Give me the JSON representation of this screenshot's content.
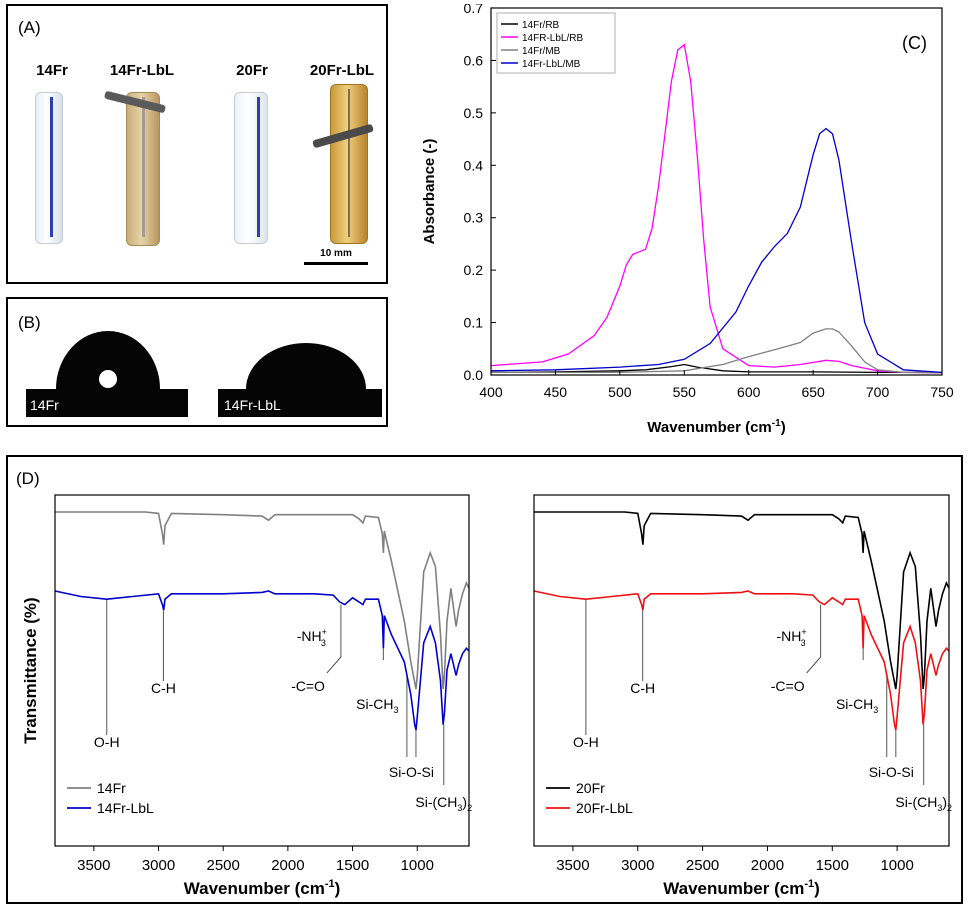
{
  "panel_a": {
    "label": "(A)",
    "samples": [
      "14Fr",
      "14Fr-LbL",
      "20Fr",
      "20Fr-LbL"
    ],
    "scale_bar": "10 mm"
  },
  "panel_b": {
    "label": "(B)",
    "drops": [
      "14Fr",
      "14Fr-LbL"
    ]
  },
  "panel_d": {
    "label": "(D)"
  },
  "chart_data": [
    {
      "id": "C",
      "type": "line",
      "panel_label": "(C)",
      "xlabel": "Wavenumber (cm",
      "xlabel_sup": "-1",
      "xlabel_end": ")",
      "ylabel": "Absorbance (-)",
      "xlim": [
        400,
        750
      ],
      "ylim": [
        0,
        0.7
      ],
      "xticks": [
        400,
        450,
        500,
        550,
        600,
        650,
        700,
        750
      ],
      "yticks": [
        0.0,
        0.1,
        0.2,
        0.3,
        0.4,
        0.5,
        0.6,
        0.7
      ],
      "legend": "top-left",
      "series": [
        {
          "name": "14Fr/RB",
          "color": "#000000",
          "x": [
            400,
            450,
            500,
            520,
            540,
            550,
            560,
            580,
            600,
            650,
            700,
            750
          ],
          "y": [
            0.005,
            0.006,
            0.008,
            0.01,
            0.016,
            0.02,
            0.015,
            0.008,
            0.006,
            0.006,
            0.005,
            0.005
          ]
        },
        {
          "name": "14FR-LbL/RB",
          "color": "#ff00ff",
          "x": [
            400,
            440,
            460,
            480,
            490,
            500,
            505,
            510,
            515,
            520,
            525,
            530,
            535,
            540,
            545,
            550,
            555,
            560,
            565,
            570,
            580,
            600,
            620,
            640,
            660,
            670,
            680,
            700,
            720,
            750
          ],
          "y": [
            0.018,
            0.025,
            0.04,
            0.075,
            0.11,
            0.17,
            0.21,
            0.23,
            0.235,
            0.24,
            0.28,
            0.36,
            0.46,
            0.56,
            0.62,
            0.63,
            0.56,
            0.42,
            0.26,
            0.13,
            0.05,
            0.018,
            0.015,
            0.02,
            0.028,
            0.026,
            0.018,
            0.008,
            0.005,
            0.004
          ]
        },
        {
          "name": "14Fr/MB",
          "color": "#808080",
          "x": [
            400,
            500,
            550,
            580,
            600,
            620,
            640,
            650,
            660,
            665,
            670,
            680,
            690,
            700,
            720,
            750
          ],
          "y": [
            0.005,
            0.005,
            0.008,
            0.02,
            0.035,
            0.048,
            0.062,
            0.08,
            0.088,
            0.088,
            0.082,
            0.055,
            0.025,
            0.01,
            0.005,
            0.004
          ]
        },
        {
          "name": "14Fr-LbL/MB",
          "color": "#0000cc",
          "x": [
            400,
            450,
            500,
            530,
            550,
            570,
            590,
            600,
            610,
            620,
            630,
            640,
            650,
            655,
            660,
            665,
            670,
            680,
            690,
            700,
            720,
            750
          ],
          "y": [
            0.008,
            0.01,
            0.015,
            0.02,
            0.03,
            0.06,
            0.12,
            0.17,
            0.215,
            0.245,
            0.27,
            0.32,
            0.42,
            0.46,
            0.47,
            0.46,
            0.41,
            0.25,
            0.1,
            0.04,
            0.01,
            0.005
          ]
        }
      ]
    },
    {
      "id": "D-left",
      "type": "line",
      "xlabel": "Wavenumber (cm",
      "xlabel_sup": "-1",
      "xlabel_end": ")",
      "ylabel": "Transmittance (%)",
      "xlim": [
        3800,
        600
      ],
      "xticks": [
        3500,
        3000,
        2500,
        2000,
        1500,
        1000
      ],
      "legend": "bottom-left",
      "annotations": [
        "O-H",
        "C-H",
        "-NH",
        "-C=O",
        "Si-CH",
        "Si-O-Si",
        "Si-(CH"
      ],
      "sub3": "3",
      "plus": "+",
      "sub2": "2",
      "close": ")",
      "series": [
        {
          "name": "14Fr",
          "color": "#808080",
          "x": [
            3800,
            3400,
            3100,
            3000,
            2970,
            2960,
            2950,
            2900,
            2500,
            2200,
            2150,
            2100,
            1800,
            1500,
            1450,
            1420,
            1400,
            1300,
            1270,
            1262,
            1255,
            1200,
            1100,
            1050,
            1010,
            1000,
            950,
            900,
            860,
            820,
            800,
            790,
            770,
            740,
            700,
            680,
            650,
            620,
            600
          ],
          "y": [
            1.0,
            1.0,
            1.0,
            0.995,
            0.92,
            0.88,
            0.95,
            0.995,
            0.99,
            0.985,
            0.97,
            0.99,
            0.99,
            0.99,
            0.975,
            0.96,
            0.985,
            0.98,
            0.92,
            0.85,
            0.93,
            0.82,
            0.6,
            0.45,
            0.35,
            0.4,
            0.78,
            0.85,
            0.8,
            0.55,
            0.35,
            0.4,
            0.6,
            0.72,
            0.58,
            0.64,
            0.7,
            0.74,
            0.72
          ]
        },
        {
          "name": "14Fr-LbL",
          "color": "#0000cc",
          "x": [
            3800,
            3600,
            3400,
            3200,
            3000,
            2970,
            2960,
            2950,
            2900,
            2500,
            2200,
            2150,
            2100,
            1800,
            1650,
            1600,
            1560,
            1500,
            1450,
            1420,
            1400,
            1300,
            1270,
            1262,
            1255,
            1200,
            1100,
            1050,
            1020,
            1010,
            1000,
            950,
            900,
            860,
            820,
            800,
            790,
            770,
            740,
            700,
            680,
            650,
            620,
            600
          ],
          "y": [
            0.71,
            0.69,
            0.68,
            0.69,
            0.7,
            0.66,
            0.64,
            0.68,
            0.7,
            0.7,
            0.705,
            0.71,
            0.7,
            0.7,
            0.695,
            0.67,
            0.66,
            0.685,
            0.67,
            0.66,
            0.68,
            0.68,
            0.62,
            0.5,
            0.62,
            0.55,
            0.45,
            0.33,
            0.22,
            0.2,
            0.25,
            0.52,
            0.58,
            0.52,
            0.38,
            0.22,
            0.26,
            0.42,
            0.48,
            0.4,
            0.44,
            0.48,
            0.5,
            0.49
          ]
        }
      ]
    },
    {
      "id": "D-right",
      "type": "line",
      "xlabel": "Wavenumber (cm",
      "xlabel_sup": "-1",
      "xlabel_end": ")",
      "xlim": [
        3800,
        600
      ],
      "xticks": [
        3500,
        3000,
        2500,
        2000,
        1500,
        1000
      ],
      "legend": "bottom-left",
      "annotations": [
        "O-H",
        "C-H",
        "-NH",
        "-C=O",
        "Si-CH",
        "Si-O-Si",
        "Si-(CH"
      ],
      "sub3": "3",
      "plus": "+",
      "sub2": "2",
      "close": ")",
      "series": [
        {
          "name": "20Fr",
          "color": "#000000",
          "x": [
            3800,
            3400,
            3100,
            3000,
            2970,
            2960,
            2950,
            2900,
            2500,
            2200,
            2150,
            2100,
            1800,
            1500,
            1450,
            1420,
            1400,
            1300,
            1270,
            1262,
            1255,
            1200,
            1100,
            1050,
            1010,
            1000,
            950,
            900,
            860,
            820,
            800,
            790,
            770,
            740,
            700,
            680,
            650,
            620,
            600
          ],
          "y": [
            1.0,
            1.0,
            1.0,
            0.995,
            0.92,
            0.88,
            0.95,
            0.995,
            0.99,
            0.985,
            0.97,
            0.99,
            0.99,
            0.99,
            0.975,
            0.96,
            0.985,
            0.98,
            0.92,
            0.85,
            0.93,
            0.82,
            0.6,
            0.45,
            0.35,
            0.4,
            0.78,
            0.85,
            0.8,
            0.55,
            0.35,
            0.4,
            0.6,
            0.72,
            0.58,
            0.64,
            0.7,
            0.74,
            0.72
          ]
        },
        {
          "name": "20Fr-LbL",
          "color": "#ee1111",
          "x": [
            3800,
            3600,
            3400,
            3200,
            3000,
            2970,
            2960,
            2950,
            2900,
            2500,
            2200,
            2150,
            2100,
            1800,
            1650,
            1600,
            1560,
            1500,
            1450,
            1420,
            1400,
            1300,
            1270,
            1262,
            1255,
            1200,
            1100,
            1050,
            1020,
            1010,
            1000,
            950,
            900,
            860,
            820,
            800,
            790,
            770,
            740,
            700,
            680,
            650,
            620,
            600
          ],
          "y": [
            0.71,
            0.69,
            0.68,
            0.69,
            0.7,
            0.66,
            0.64,
            0.68,
            0.7,
            0.7,
            0.705,
            0.71,
            0.7,
            0.7,
            0.695,
            0.67,
            0.66,
            0.685,
            0.67,
            0.66,
            0.68,
            0.68,
            0.62,
            0.5,
            0.62,
            0.55,
            0.45,
            0.33,
            0.22,
            0.2,
            0.25,
            0.52,
            0.58,
            0.52,
            0.38,
            0.22,
            0.26,
            0.42,
            0.48,
            0.4,
            0.44,
            0.48,
            0.5,
            0.49
          ]
        }
      ]
    }
  ]
}
